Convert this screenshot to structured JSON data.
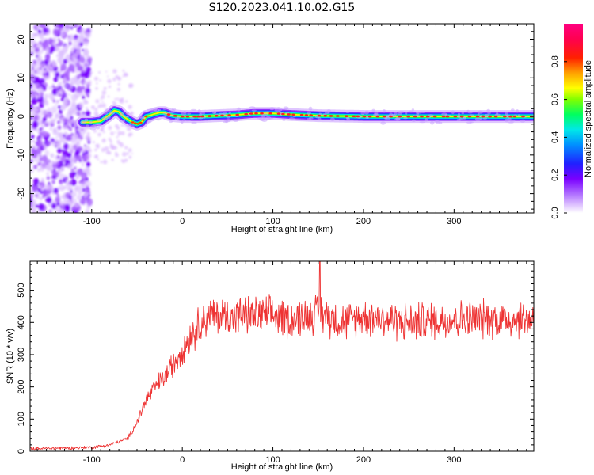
{
  "title": "S120.2023.041.10.02.G15",
  "chart_data": [
    {
      "type": "heatmap",
      "xlabel": "Height of straight line (km)",
      "ylabel": "Frequency (Hz)",
      "xlim": [
        -168,
        388
      ],
      "ylim": [
        -25,
        24
      ],
      "x_ticks": [
        -100,
        0,
        100,
        200,
        300
      ],
      "y_ticks": [
        -20,
        -10,
        0,
        10,
        20
      ],
      "grid": false,
      "colorbar": {
        "label": "Normalized spectral amplitude",
        "range": [
          0,
          1
        ],
        "ticks": [
          "0.0",
          "0.2",
          "0.4",
          "0.6",
          "0.8"
        ],
        "colors": [
          "#ffffff",
          "#d9b3ff",
          "#8000ff",
          "#0000ff",
          "#00ffff",
          "#00ff00",
          "#ffff00",
          "#ff0000",
          "#ff0080"
        ]
      },
      "ridge": {
        "x": [
          -110,
          -100,
          -90,
          -80,
          -75,
          -70,
          -65,
          -60,
          -55,
          -50,
          -45,
          -40,
          -35,
          -30,
          -25,
          -20,
          -15,
          -10,
          0,
          20,
          40,
          60,
          80,
          100,
          120,
          150,
          200,
          250,
          300,
          350,
          388
        ],
        "freq_hz": [
          -1.5,
          -1.5,
          -1.2,
          0.5,
          1.5,
          1.2,
          0,
          -0.8,
          -1.5,
          -2.0,
          -1.5,
          0,
          0.3,
          0.7,
          1.0,
          1.0,
          0.5,
          0.2,
          0,
          0,
          0.2,
          0.4,
          0.8,
          0.8,
          0.5,
          0.2,
          0,
          0,
          0,
          0,
          0
        ]
      },
      "noise_region_x": [
        -168,
        -110
      ]
    },
    {
      "type": "line",
      "xlabel": "Height of straight line (km)",
      "ylabel": "SNR (10 * v/v)",
      "xlim": [
        -168,
        388
      ],
      "ylim": [
        0,
        590
      ],
      "x_ticks": [
        -100,
        0,
        100,
        200,
        300
      ],
      "y_ticks": [
        0,
        100,
        200,
        300,
        400,
        500
      ],
      "grid": false,
      "series": [
        {
          "color": "#ee3333",
          "trend_x": [
            -168,
            -100,
            -80,
            -60,
            -50,
            -40,
            -30,
            -20,
            -10,
            0,
            10,
            20,
            30,
            40,
            60,
            80,
            100,
            120,
            150,
            180,
            200,
            250,
            300,
            350,
            388
          ],
          "trend_y": [
            8,
            12,
            20,
            40,
            90,
            160,
            200,
            230,
            270,
            320,
            360,
            400,
            420,
            420,
            420,
            420,
            420,
            410,
            430,
            400,
            420,
            400,
            410,
            410,
            410
          ],
          "noise_amplitude": 60,
          "peak": {
            "x": 152,
            "y": 590
          }
        }
      ]
    }
  ]
}
